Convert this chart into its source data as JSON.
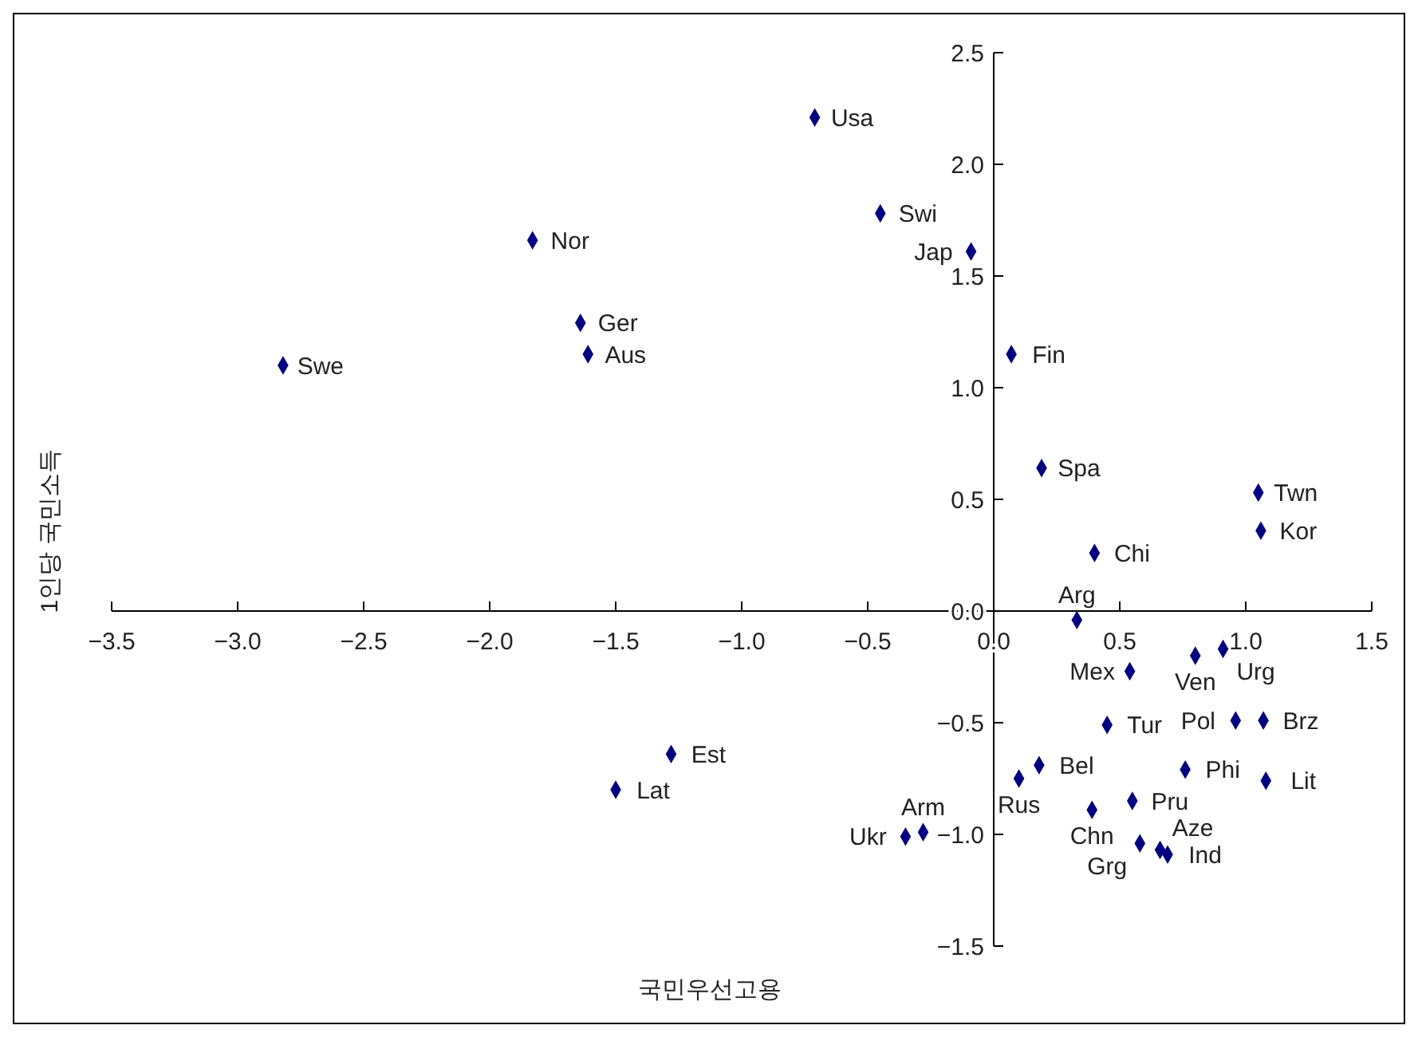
{
  "chart_data": {
    "type": "scatter",
    "xlabel": "국민우선고용",
    "ylabel": "1인당 국민소득",
    "marker": "diamond",
    "grid": false,
    "xlim": [
      -3.5,
      1.5
    ],
    "ylim": [
      -1.5,
      2.5
    ],
    "xticks": [
      {
        "value": -3.5,
        "label": "−3.5"
      },
      {
        "value": -3,
        "label": "−3.0"
      },
      {
        "value": -2.5,
        "label": "−2.5"
      },
      {
        "value": -2,
        "label": "−2.0"
      },
      {
        "value": -1.5,
        "label": "−1.5"
      },
      {
        "value": -1,
        "label": "−1.0"
      },
      {
        "value": -0.5,
        "label": "−0.5"
      },
      {
        "value": 0,
        "label": "0.0"
      },
      {
        "value": 0.5,
        "label": "0.5"
      },
      {
        "value": 1,
        "label": "1.0"
      },
      {
        "value": 1.5,
        "label": "1.5"
      }
    ],
    "yticks": [
      {
        "value": -1.5,
        "label": "−1.5"
      },
      {
        "value": -1,
        "label": "−1.0"
      },
      {
        "value": -0.5,
        "label": "−0.5"
      },
      {
        "value": 0,
        "label": "0.0"
      },
      {
        "value": 0.5,
        "label": "0.5"
      },
      {
        "value": 1,
        "label": "1.0"
      },
      {
        "value": 1.5,
        "label": "1.5"
      },
      {
        "value": 2,
        "label": "2.0"
      },
      {
        "value": 2.5,
        "label": "2.5"
      }
    ],
    "series": [
      {
        "color": "#000080",
        "x": [
          -0.71,
          -0.45,
          -0.09,
          -1.83,
          -1.64,
          -1.61,
          -2.82,
          0.07,
          0.19,
          0.4,
          1.05,
          1.06,
          0.33,
          0.91,
          0.8,
          0.54,
          0.45,
          0.96,
          1.07,
          0.18,
          0.1,
          0.76,
          1.08,
          0.39,
          0.55,
          0.58,
          0.66,
          0.69,
          -1.28,
          -1.5,
          -0.35,
          -0.28
        ],
        "values": [
          2.21,
          1.78,
          1.61,
          1.66,
          1.29,
          1.15,
          1.1,
          1.15,
          0.64,
          0.26,
          0.53,
          0.36,
          -0.04,
          -0.17,
          -0.2,
          -0.27,
          -0.51,
          -0.49,
          -0.49,
          -0.69,
          -0.75,
          -0.71,
          -0.76,
          -0.89,
          -0.85,
          -1.04,
          -1.07,
          -1.09,
          -0.64,
          -0.8,
          -1.01,
          -0.99
        ]
      }
    ],
    "annotations": [
      {
        "text": "Usa",
        "x": -0.71,
        "y": 2.21
      },
      {
        "text": "Swi",
        "x": -0.45,
        "y": 1.78
      },
      {
        "text": "Jap",
        "x": -0.09,
        "y": 1.61
      },
      {
        "text": "Nor",
        "x": -1.83,
        "y": 1.66
      },
      {
        "text": "Ger",
        "x": -1.64,
        "y": 1.29
      },
      {
        "text": "Aus",
        "x": -1.61,
        "y": 1.15
      },
      {
        "text": "Swe",
        "x": -2.82,
        "y": 1.1
      },
      {
        "text": "Fin",
        "x": 0.07,
        "y": 1.15
      },
      {
        "text": "Spa",
        "x": 0.19,
        "y": 0.64
      },
      {
        "text": "Chi",
        "x": 0.4,
        "y": 0.26
      },
      {
        "text": "Twn",
        "x": 1.05,
        "y": 0.53
      },
      {
        "text": "Kor",
        "x": 1.06,
        "y": 0.36
      },
      {
        "text": "Arg",
        "x": 0.33,
        "y": -0.04
      },
      {
        "text": "Urg",
        "x": 0.91,
        "y": -0.17
      },
      {
        "text": "Ven",
        "x": 0.8,
        "y": -0.2
      },
      {
        "text": "Mex",
        "x": 0.54,
        "y": -0.27
      },
      {
        "text": "Tur",
        "x": 0.45,
        "y": -0.51
      },
      {
        "text": "Brz",
        "x": 1.07,
        "y": -0.49
      },
      {
        "text": "Pol",
        "x": 0.96,
        "y": -0.49
      },
      {
        "text": "Bel",
        "x": 0.18,
        "y": -0.69
      },
      {
        "text": "Rus",
        "x": 0.1,
        "y": -0.75
      },
      {
        "text": "Phi",
        "x": 0.76,
        "y": -0.71
      },
      {
        "text": "Lit",
        "x": 1.08,
        "y": -0.76
      },
      {
        "text": "Chn",
        "x": 0.39,
        "y": -0.89
      },
      {
        "text": "Pru",
        "x": 0.55,
        "y": -0.85
      },
      {
        "text": "Grg",
        "x": 0.58,
        "y": -1.04
      },
      {
        "text": "Aze",
        "x": 0.66,
        "y": -1.07
      },
      {
        "text": "Ind",
        "x": 0.69,
        "y": -1.09
      },
      {
        "text": "Est",
        "x": -1.28,
        "y": -0.64
      },
      {
        "text": "Lat",
        "x": -1.5,
        "y": -0.8
      },
      {
        "text": "Ukr",
        "x": -0.35,
        "y": -1.01
      },
      {
        "text": "Arm",
        "x": -0.28,
        "y": -0.99
      }
    ]
  }
}
